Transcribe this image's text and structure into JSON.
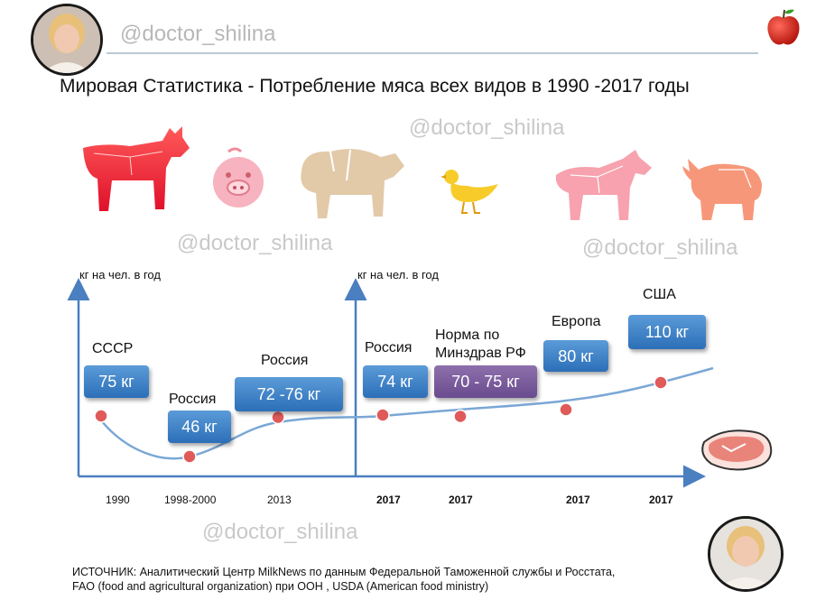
{
  "header": {
    "handle": "@doctor_shilina"
  },
  "title": "Мировая Статистика - Потребление мяса всех видов в 1990 -2017 годы",
  "watermarks": [
    "@doctor_shilina",
    "@doctor_shilina",
    "@doctor_shilina",
    "@doctor_shilina"
  ],
  "icons": [
    "avatar-photo",
    "apple-icon",
    "cow-icon",
    "pig-icon",
    "sheep-icon",
    "duck-icon",
    "horse-icon",
    "yak-icon",
    "steak-icon"
  ],
  "colors": {
    "accent_blue": "#2c6fb8",
    "accent_purple": "#6a4c8f",
    "point_red": "#e05a5a",
    "curve": "#7aa7d6",
    "axis": "#4a7fc0"
  },
  "chart_data": {
    "type": "line",
    "ylabel_left": "кг на чел. в год",
    "ylabel_right": "кг на чел. в год",
    "panels": [
      {
        "name": "history",
        "points": [
          {
            "x": "1990",
            "region": "СССР",
            "value": 75,
            "label": "75 кг"
          },
          {
            "x": "1998-2000",
            "region": "Россия",
            "value": 46,
            "label": "46 кг"
          },
          {
            "x": "2013",
            "region": "Россия",
            "value": 74,
            "label": "72 -76 кг"
          }
        ]
      },
      {
        "name": "2017",
        "points": [
          {
            "x": "2017",
            "region": "Россия",
            "value": 74,
            "label": "74 кг"
          },
          {
            "x": "2017",
            "region": "Норма по Минздрав РФ",
            "value": 72.5,
            "label": "70 - 75 кг"
          },
          {
            "x": "2017",
            "region": "Европа",
            "value": 80,
            "label": "80 кг"
          },
          {
            "x": "2017",
            "region": "США",
            "value": 110,
            "label": "110 кг"
          }
        ]
      }
    ],
    "grid": false,
    "legend": "none"
  },
  "source": {
    "line1": "ИСТОЧНИК: Аналитический Центр MilkNews по данным Федеральной  Таможенной службы и Росстата,",
    "line2": "FAO (food and agricultural organization) при ООН , USDA (American food ministry)"
  }
}
